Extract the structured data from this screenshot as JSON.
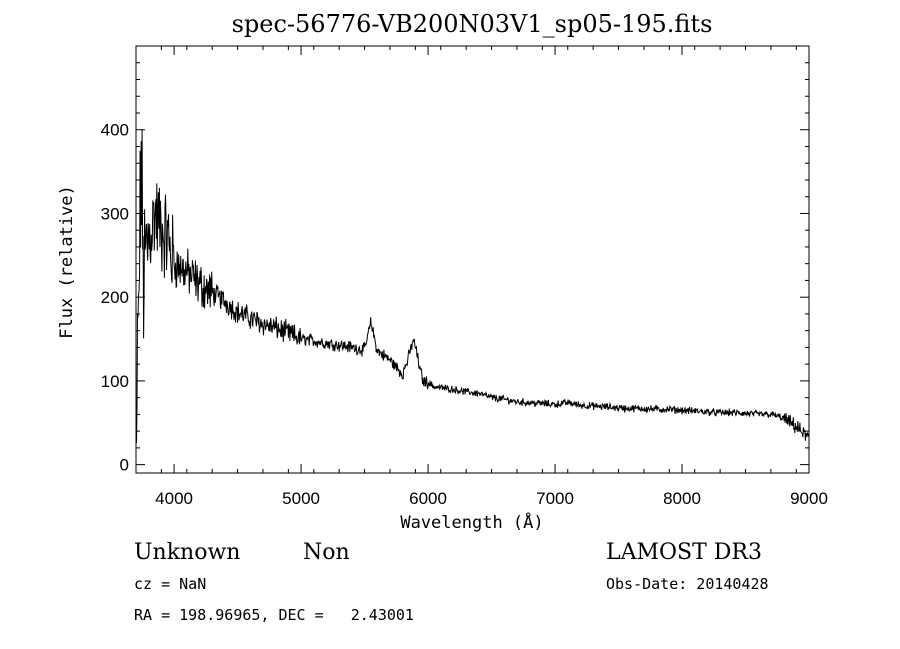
{
  "chart_data": {
    "type": "line",
    "title": "spec-56776-VB200N03V1_sp05-195.fits",
    "xlabel": "Wavelength (Å)",
    "ylabel": "Flux (relative)",
    "xlim": [
      3700,
      9000
    ],
    "ylim": [
      -10,
      500
    ],
    "xticks": [
      4000,
      5000,
      6000,
      7000,
      8000,
      9000
    ],
    "yticks": [
      0,
      100,
      200,
      300,
      400
    ],
    "xtick_labels": [
      "4000",
      "5000",
      "6000",
      "7000",
      "8000",
      "9000"
    ],
    "ytick_labels": [
      "0",
      "100",
      "200",
      "300",
      "400"
    ],
    "grid": false,
    "series": [
      {
        "x": [
          3700,
          3720,
          3740,
          3760,
          3780,
          3800,
          3850,
          3900,
          3950,
          4000,
          4100,
          4200,
          4300,
          4400,
          4500,
          4600,
          4700,
          4800,
          4900,
          5000,
          5100,
          5200,
          5300,
          5400,
          5500,
          5550,
          5600,
          5700,
          5800,
          5850,
          5880,
          5900,
          5930,
          5960,
          6000,
          6050,
          6100,
          6200,
          6300,
          6400,
          6500,
          6600,
          6700,
          6800,
          6900,
          7000,
          7100,
          7200,
          7300,
          7400,
          7500,
          7600,
          7700,
          7800,
          7900,
          8000,
          8100,
          8200,
          8300,
          8400,
          8500,
          8600,
          8700,
          8750,
          8800,
          8850,
          8900,
          8950,
          9000
        ],
        "y": [
          30,
          180,
          360,
          220,
          250,
          270,
          300,
          280,
          270,
          240,
          230,
          215,
          205,
          195,
          182,
          175,
          168,
          163,
          157,
          150,
          148,
          145,
          143,
          140,
          137,
          170,
          136,
          125,
          108,
          130,
          148,
          142,
          118,
          100,
          98,
          93,
          92,
          90,
          87,
          85,
          80,
          78,
          75,
          74,
          73,
          72,
          74,
          71,
          70,
          69,
          68,
          67,
          67,
          66,
          66,
          65,
          64,
          63,
          62,
          62,
          61,
          60,
          60,
          58,
          55,
          50,
          45,
          38,
          32
        ]
      }
    ],
    "annotations": {
      "class": "Unknown",
      "subclass": "Non",
      "survey": "LAMOST DR3",
      "cz": "cz = NaN",
      "obs_date": "Obs-Date: 20140428",
      "coords": "RA = 198.96965, DEC =   2.43001"
    }
  }
}
